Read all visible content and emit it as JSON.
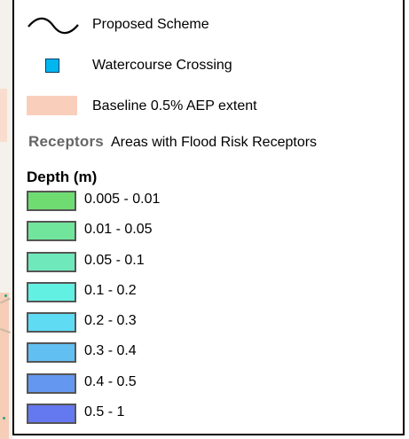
{
  "legend": {
    "items": [
      {
        "symbol": "wave-line",
        "label": "Proposed Scheme"
      },
      {
        "symbol": "square",
        "color": "#00b6f0",
        "label": "Watercourse Crossing"
      },
      {
        "symbol": "area",
        "color": "#f9cfbb",
        "label": "Baseline 0.5% AEP extent"
      }
    ],
    "receptors": {
      "key": "Receptors",
      "label": "Areas with Flood Risk Receptors"
    },
    "depth": {
      "title": "Depth (m)",
      "classes": [
        {
          "label": "0.005 - 0.01",
          "color": "#6fdc72"
        },
        {
          "label": "0.01 - 0.05",
          "color": "#72e59c"
        },
        {
          "label": "0.05 - 0.1",
          "color": "#6fe8bc"
        },
        {
          "label": "0.1 - 0.2",
          "color": "#62f0e2"
        },
        {
          "label": "0.2 - 0.3",
          "color": "#5fdcf4"
        },
        {
          "label": "0.3 - 0.4",
          "color": "#62bff2"
        },
        {
          "label": "0.4 - 0.5",
          "color": "#6497f0"
        },
        {
          "label": "0.5 - 1",
          "color": "#6478f0"
        }
      ]
    }
  }
}
